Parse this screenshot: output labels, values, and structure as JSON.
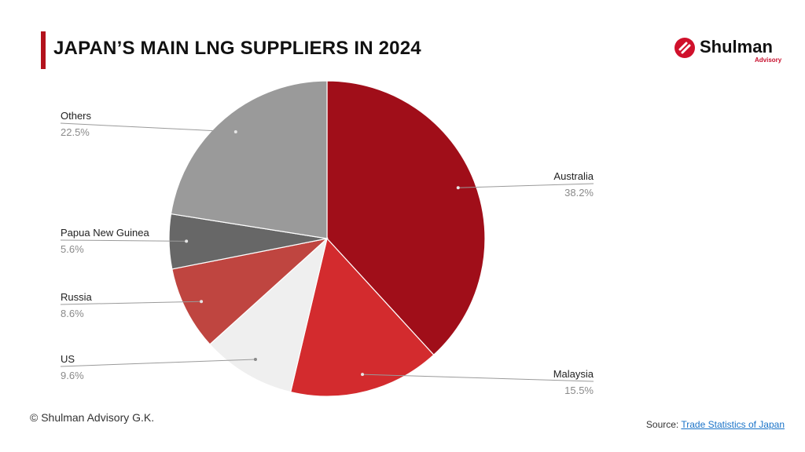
{
  "title": "JAPAN’S MAIN LNG SUPPLIERS IN 2024",
  "logo": {
    "name": "Shulman",
    "sub": "Advisory"
  },
  "copyright": "© Shulman Advisory G.K.",
  "source": {
    "label": "Source:",
    "link_text": "Trade Statistics of Japan"
  },
  "chart_data": {
    "type": "pie",
    "slices": [
      {
        "name": "Australia",
        "value": 38.2,
        "label": "38.2%",
        "color": "#a00e19"
      },
      {
        "name": "Malaysia",
        "value": 15.5,
        "label": "15.5%",
        "color": "#d32b2e"
      },
      {
        "name": "US",
        "value": 9.6,
        "label": "9.6%",
        "color": "#efefef"
      },
      {
        "name": "Russia",
        "value": 8.6,
        "label": "8.6%",
        "color": "#bf4540"
      },
      {
        "name": "Papua New Guinea",
        "value": 5.6,
        "label": "5.6%",
        "color": "#676767"
      },
      {
        "name": "Others",
        "value": 22.5,
        "label": "22.5%",
        "color": "#9a9a9a"
      }
    ]
  }
}
